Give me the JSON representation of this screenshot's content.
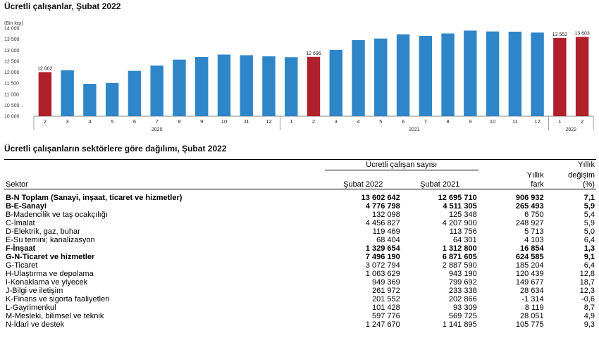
{
  "chart_title": "Ücretli çalışanlar, Şubat 2022",
  "table_title": "Ücretli çalışanların sektörlere göre dağılımı, Şubat 2022",
  "colors": {
    "bar_blue": "#2e86c8",
    "bar_red": "#b0202a"
  },
  "chart_data": {
    "type": "bar",
    "ylabel": "(Bin kişi)",
    "ylim": [
      10000,
      14000
    ],
    "yticks": [
      "10 000",
      "10 500",
      "11 000",
      "11 500",
      "12 000",
      "12 500",
      "13 000",
      "13 500",
      "14 000"
    ],
    "categories": [
      "2",
      "3",
      "4",
      "5",
      "6",
      "7",
      "8",
      "9",
      "10",
      "11",
      "12",
      "1",
      "2",
      "3",
      "4",
      "5",
      "6",
      "7",
      "8",
      "9",
      "10",
      "11",
      "12",
      "1",
      "2"
    ],
    "year_labels": [
      "2020",
      "2021",
      "2022"
    ],
    "values": [
      12002,
      12090,
      11470,
      11510,
      12060,
      12300,
      12570,
      12690,
      12800,
      12770,
      12720,
      12680,
      12696,
      13010,
      13460,
      13530,
      13720,
      13650,
      13760,
      13890,
      13850,
      13840,
      13800,
      13552,
      13603
    ],
    "highlight": [
      true,
      false,
      false,
      false,
      false,
      false,
      false,
      false,
      false,
      false,
      false,
      false,
      true,
      false,
      false,
      false,
      false,
      false,
      false,
      false,
      false,
      false,
      false,
      true,
      true
    ],
    "data_labels": [
      {
        "index": 0,
        "text": "12 002"
      },
      {
        "index": 12,
        "text": "12 696"
      },
      {
        "index": 23,
        "text": "13 552"
      },
      {
        "index": 24,
        "text": "13 603"
      }
    ]
  },
  "table": {
    "head": {
      "sector": "Sektor",
      "group": "Ücretli çalışan sayısı",
      "col1": "Şubat 2022",
      "col2": "Şubat 2021",
      "col3_line1": "Yıllık",
      "col3_line2": "fark",
      "col4_line1": "Yıllık",
      "col4_line2": "değişim",
      "col4_line3": "(%)"
    },
    "rows": [
      {
        "sector": "B-N Toplam (Sanayi, inşaat, ticaret ve hizmetler)",
        "v2022": "13 602 642",
        "v2021": "12 695 710",
        "diff": "906 932",
        "pct": "7,1",
        "bold": true
      },
      {
        "sector": "B-E-Sanayi",
        "v2022": "4 776 798",
        "v2021": "4 511 305",
        "diff": "265 493",
        "pct": "5,9",
        "bold": true
      },
      {
        "sector": "B-Madencilik ve taş ocakçılığı",
        "v2022": "132 098",
        "v2021": "125 348",
        "diff": "6 750",
        "pct": "5,4",
        "bold": false
      },
      {
        "sector": "C-İmalat",
        "v2022": "4 456 827",
        "v2021": "4 207 900",
        "diff": "248 927",
        "pct": "5,9",
        "bold": false
      },
      {
        "sector": "D-Elektrik, gaz, buhar",
        "v2022": "119 469",
        "v2021": "113 756",
        "diff": "5 713",
        "pct": "5,0",
        "bold": false
      },
      {
        "sector": "E-Su temini; kanalizasyon",
        "v2022": "68 404",
        "v2021": "64 301",
        "diff": "4 103",
        "pct": "6,4",
        "bold": false
      },
      {
        "sector": "F-İnşaat",
        "v2022": "1 329 654",
        "v2021": "1 312 800",
        "diff": "16 854",
        "pct": "1,3",
        "bold": true
      },
      {
        "sector": "G-N-Ticaret ve hizmetler",
        "v2022": "7 496 190",
        "v2021": "6 871 605",
        "diff": "624 585",
        "pct": "9,1",
        "bold": true
      },
      {
        "sector": "G-Ticaret",
        "v2022": "3 072 794",
        "v2021": "2 887 590",
        "diff": "185 204",
        "pct": "6,4",
        "bold": false
      },
      {
        "sector": "H-Ulaştırma ve depolama",
        "v2022": "1 063 629",
        "v2021": "943 190",
        "diff": "120 439",
        "pct": "12,8",
        "bold": false
      },
      {
        "sector": "I-Konaklama ve yiyecek",
        "v2022": "949 369",
        "v2021": "799 692",
        "diff": "149 677",
        "pct": "18,7",
        "bold": false
      },
      {
        "sector": "J-Bilgi ve iletişim",
        "v2022": "261 972",
        "v2021": "233 338",
        "diff": "28 634",
        "pct": "12,3",
        "bold": false
      },
      {
        "sector": "K-Finans ve sigorta faaliyetleri",
        "v2022": "201 552",
        "v2021": "202 866",
        "diff": "-1 314",
        "pct": "-0,6",
        "bold": false
      },
      {
        "sector": "L-Gayrimenkul",
        "v2022": "101 428",
        "v2021": "93 309",
        "diff": "8 119",
        "pct": "8,7",
        "bold": false
      },
      {
        "sector": "M-Mesleki, bilimsel ve teknik",
        "v2022": "597 776",
        "v2021": "569 725",
        "diff": "28 051",
        "pct": "4,9",
        "bold": false
      },
      {
        "sector": "N-İdari ve destek",
        "v2022": "1 247 670",
        "v2021": "1 141 895",
        "diff": "105 775",
        "pct": "9,3",
        "bold": false
      }
    ]
  }
}
